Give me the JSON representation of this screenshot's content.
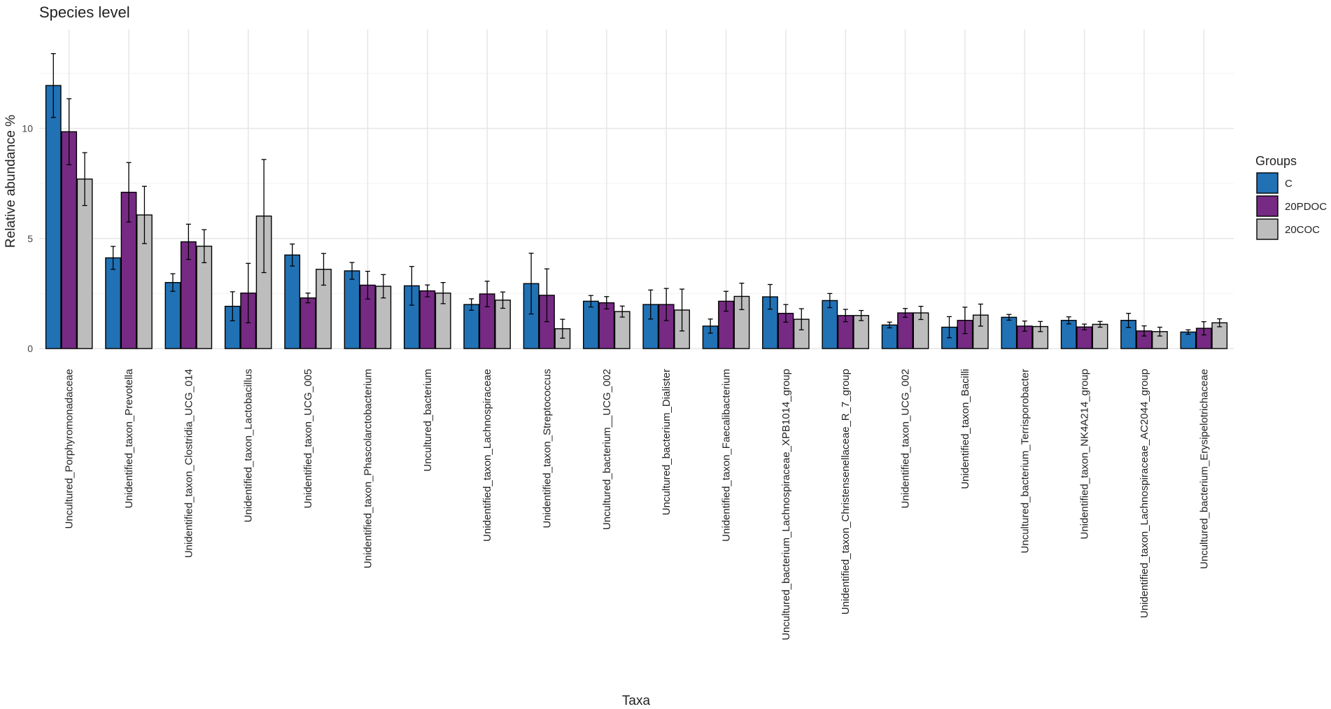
{
  "chart_data": {
    "type": "bar",
    "title": "Species level",
    "xlabel": "Taxa",
    "ylabel": "Relative abundance %",
    "ylim": [
      0,
      14.5
    ],
    "yticks": [
      0,
      5,
      10
    ],
    "grid": true,
    "legend": {
      "title": "Groups",
      "position": "right"
    },
    "categories": [
      "Uncultured_Porphyromonadaceae",
      "Unidentified_taxon_Prevotella",
      "Unidentified_taxon_Clostridia_UCG_014",
      "Unidentified_taxon_Lactobacillus",
      "Unidentified_taxon_UCG_005",
      "Unidentified_taxon_Phascolarctobacterium",
      "Uncultured_bacterium",
      "Unidentified_taxon_Lachnospiraceae",
      "Unidentified_taxon_Streptococcus",
      "Uncultured_bacterium__UCG_002",
      "Uncultured_bacterium_Dialister",
      "Unidentified_taxon_Faecalibacterium",
      "Uncultured_bacterium_Lachnospiraceae_XPB1014_group",
      "Unidentified_taxon_Christensenellaceae_R_7_group",
      "Unidentified_taxon_UCG_002",
      "Unidentified_taxon_Bacilli",
      "Uncultured_bacterium_Terrisporobacter",
      "Unidentified_taxon_NK4A214_group",
      "Unidentified_taxon_Lachnospiraceae_AC2044_group",
      "Uncultured_bacterium_Erysipelotrichaceae"
    ],
    "series": [
      {
        "name": "C",
        "color": "#2171B5",
        "values": [
          11.95,
          4.12,
          3.0,
          1.92,
          4.25,
          3.53,
          2.85,
          2.0,
          2.95,
          2.15,
          2.0,
          1.02,
          2.35,
          2.18,
          1.07,
          0.97,
          1.42,
          1.28,
          1.28,
          0.75
        ],
        "errors": [
          1.45,
          0.52,
          0.4,
          0.66,
          0.5,
          0.38,
          0.88,
          0.26,
          1.38,
          0.26,
          0.66,
          0.32,
          0.56,
          0.32,
          0.13,
          0.48,
          0.13,
          0.16,
          0.32,
          0.1
        ]
      },
      {
        "name": "20PDOC",
        "color": "#762A83",
        "values": [
          9.85,
          7.1,
          4.85,
          2.52,
          2.3,
          2.88,
          2.62,
          2.48,
          2.42,
          2.08,
          2.0,
          2.15,
          1.6,
          1.5,
          1.62,
          1.28,
          1.02,
          0.98,
          0.8,
          0.92
        ],
        "errors": [
          1.5,
          1.35,
          0.8,
          1.35,
          0.22,
          0.63,
          0.27,
          0.58,
          1.2,
          0.28,
          0.73,
          0.45,
          0.4,
          0.28,
          0.2,
          0.6,
          0.23,
          0.13,
          0.23,
          0.3
        ]
      },
      {
        "name": "20COC",
        "color": "#BDBDBD",
        "values": [
          7.7,
          6.07,
          4.65,
          6.02,
          3.6,
          2.83,
          2.52,
          2.2,
          0.9,
          1.68,
          1.75,
          2.37,
          1.33,
          1.5,
          1.62,
          1.52,
          1.0,
          1.1,
          0.77,
          1.17
        ],
        "errors": [
          1.2,
          1.3,
          0.75,
          2.57,
          0.72,
          0.53,
          0.48,
          0.37,
          0.43,
          0.25,
          0.95,
          0.6,
          0.48,
          0.23,
          0.3,
          0.5,
          0.23,
          0.13,
          0.2,
          0.18
        ]
      }
    ]
  }
}
